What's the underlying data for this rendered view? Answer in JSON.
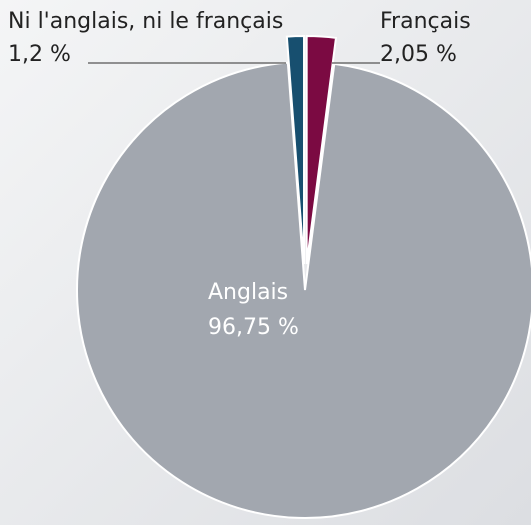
{
  "chart_data": {
    "type": "pie",
    "categories": [
      "Français",
      "Anglais",
      "Ni l'anglais, ni le français"
    ],
    "values": [
      2.05,
      96.75,
      1.2
    ],
    "value_labels": [
      "2,05 %",
      "96,75 %",
      "1,2 %"
    ],
    "colors": [
      "#7b0a42",
      "#a2a7af",
      "#174f6f"
    ]
  }
}
